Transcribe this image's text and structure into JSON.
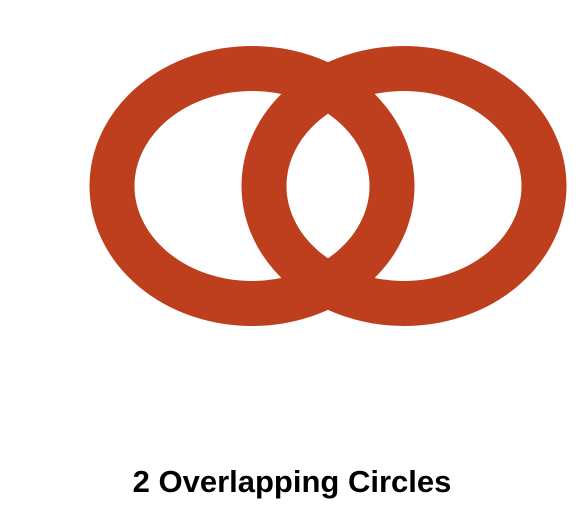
{
  "title": "2 Overlapping Circles",
  "shape": {
    "type": "ring",
    "count": 2,
    "color": "#BD3F1E"
  }
}
